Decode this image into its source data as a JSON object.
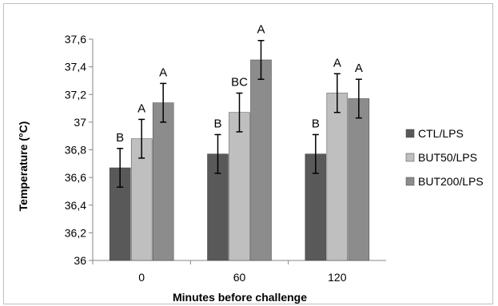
{
  "chart_data": {
    "type": "bar",
    "title": "",
    "xlabel": "Minutes before challenge",
    "ylabel": "Temperature (°C)",
    "ylim": [
      36,
      37.6
    ],
    "yticks": [
      "36",
      "36,2",
      "36,4",
      "36,6",
      "36,8",
      "37",
      "37,2",
      "37,4",
      "37,6"
    ],
    "categories": [
      "0",
      "60",
      "120"
    ],
    "grid": false,
    "legend_position": "right",
    "series": [
      {
        "name": "CTL/LPS",
        "color": "#595959",
        "values": [
          36.67,
          36.77,
          36.77
        ],
        "errors": [
          0.14,
          0.14,
          0.14
        ],
        "significance": [
          "B",
          "B",
          "B"
        ]
      },
      {
        "name": "BUT50/LPS",
        "color": "#bfbfbf",
        "values": [
          36.88,
          37.07,
          37.21
        ],
        "errors": [
          0.14,
          0.14,
          0.14
        ],
        "significance": [
          "A",
          "BC",
          "A"
        ]
      },
      {
        "name": "BUT200/LPS",
        "color": "#8c8c8c",
        "values": [
          37.14,
          37.45,
          37.17
        ],
        "errors": [
          0.14,
          0.14,
          0.14
        ],
        "significance": [
          "A",
          "A",
          "A"
        ]
      }
    ]
  }
}
